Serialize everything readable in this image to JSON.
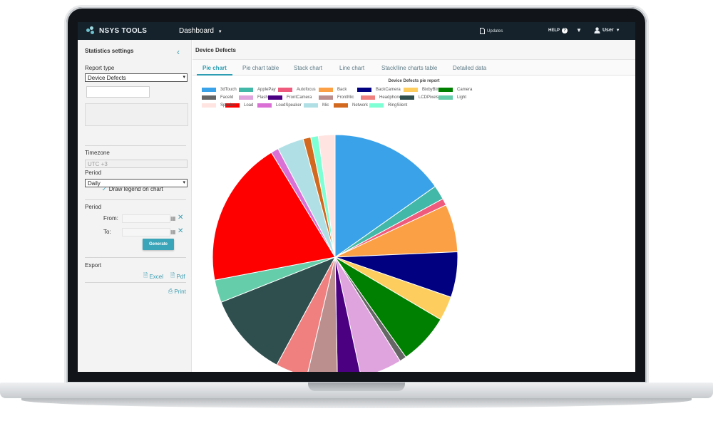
{
  "topbar": {
    "brand": "NSYS TOOLS",
    "dashboard": "Dashboard",
    "updates": "Updates",
    "help": "HELP",
    "help_glyph": "?",
    "user": "User"
  },
  "sidebar": {
    "title": "Statistics settings",
    "report_type_label": "Report type",
    "report_type_value": "Device Defects",
    "timezone_label": "Timezone",
    "timezone_value": "UTC +3",
    "period_label": "Period",
    "period_value": "Daily",
    "legend_checkbox_label": "Draw legend on chart",
    "period2_label": "Period",
    "from_label": "From:",
    "to_label": "To:",
    "generate_label": "Generate",
    "export_label": "Export",
    "excel_label": "Excel",
    "pdf_label": "Pdf",
    "print_label": "Print"
  },
  "main": {
    "title": "Device Defects",
    "tabs": [
      {
        "label": "Pie chart"
      },
      {
        "label": "Pie chart table"
      },
      {
        "label": "Stack chart"
      },
      {
        "label": "Line chart"
      },
      {
        "label": "Stack/line charts table"
      },
      {
        "label": "Detailed data"
      }
    ]
  },
  "chart_data": {
    "type": "pie",
    "title": "Device Defects pie report",
    "legend_position": "top",
    "slices": [
      {
        "name": "3dTouch",
        "value": 15.2,
        "color": "#3aa2e8"
      },
      {
        "name": "ApplePay",
        "value": 1.9,
        "color": "#41b8a8"
      },
      {
        "name": "Autofocus",
        "value": 0.9,
        "color": "#ef5b7c"
      },
      {
        "name": "Back",
        "value": 6.3,
        "color": "#fba044"
      },
      {
        "name": "BackCamera",
        "value": 6.0,
        "color": "#000080"
      },
      {
        "name": "BixbyBtn",
        "value": 3.2,
        "color": "#fdce5e"
      },
      {
        "name": "Camera",
        "value": 6.7,
        "color": "#008000"
      },
      {
        "name": "FaceId",
        "value": 0.9,
        "color": "#666666"
      },
      {
        "name": "Flash",
        "value": 5.5,
        "color": "#dfa3dd"
      },
      {
        "name": "FrontCamera",
        "value": 3.1,
        "color": "#4b0082"
      },
      {
        "name": "FrontMic",
        "value": 4.0,
        "color": "#bc8f8f"
      },
      {
        "name": "Headphones",
        "value": 4.2,
        "color": "#f08080"
      },
      {
        "name": "LCDPixels",
        "value": 11.1,
        "color": "#2f4f4f"
      },
      {
        "name": "Light",
        "value": 3.0,
        "color": "#66cdaa"
      },
      {
        "name": "Load",
        "value": 19.3,
        "color": "#ff0000"
      },
      {
        "name": "LoudSpeaker",
        "value": 1.0,
        "color": "#da70d6"
      },
      {
        "name": "Mic",
        "value": 3.5,
        "color": "#b0e0e6"
      },
      {
        "name": "Network",
        "value": 1.0,
        "color": "#d2691e"
      },
      {
        "name": "RingSilent",
        "value": 1.0,
        "color": "#7fffd4"
      },
      {
        "name": "Speaker",
        "value": 2.2,
        "color": "#ffe4e1"
      }
    ]
  }
}
